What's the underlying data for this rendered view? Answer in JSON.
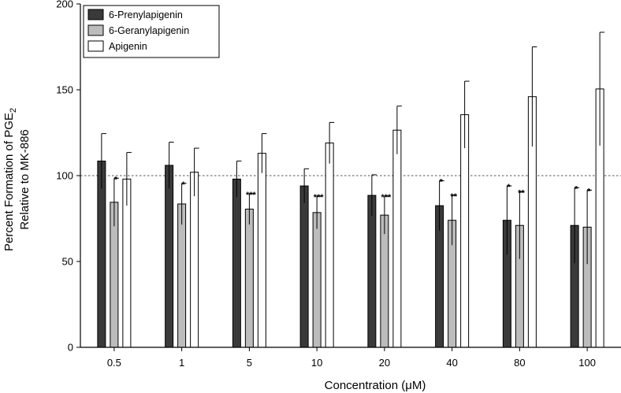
{
  "chart_data": {
    "type": "bar",
    "xlabel": "Concentration (μM)",
    "ylabel_line1_prefix": "Percent Formation of PGE",
    "ylabel_line1_subscript": "2",
    "ylabel_line2": "Relative to MK-886",
    "ylim": [
      0,
      200
    ],
    "yticks": [
      0,
      50,
      100,
      150,
      200
    ],
    "reference_line": 100,
    "categories": [
      "0.5",
      "1",
      "5",
      "10",
      "20",
      "40",
      "80",
      "100"
    ],
    "legend_position": "top-left",
    "series": [
      {
        "name": "6-Prenylapigenin",
        "color": "#3a3a3a",
        "values": [
          108.5,
          106,
          98,
          94,
          88.5,
          82.5,
          74,
          71
        ],
        "errors": [
          16,
          13.5,
          10.5,
          10,
          12,
          14.5,
          20,
          22
        ],
        "stars": [
          "",
          "",
          "",
          "",
          "",
          "*",
          "*",
          "*"
        ]
      },
      {
        "name": "6-Geranylapigenin",
        "color": "#bcbcbc",
        "values": [
          84.5,
          83.5,
          80.5,
          78.5,
          77,
          74,
          71,
          70
        ],
        "errors": [
          14,
          12,
          9,
          9.5,
          11,
          14.5,
          19.5,
          21.5
        ],
        "stars": [
          "*",
          "*",
          "***",
          "***",
          "***",
          "**",
          "**",
          "*"
        ]
      },
      {
        "name": "Apigenin",
        "color": "#ffffff",
        "values": [
          98,
          102,
          113,
          119,
          126.5,
          135.5,
          146,
          150.5
        ],
        "errors": [
          15.5,
          14,
          11.5,
          12,
          14,
          19.5,
          29,
          33
        ]
      }
    ]
  }
}
